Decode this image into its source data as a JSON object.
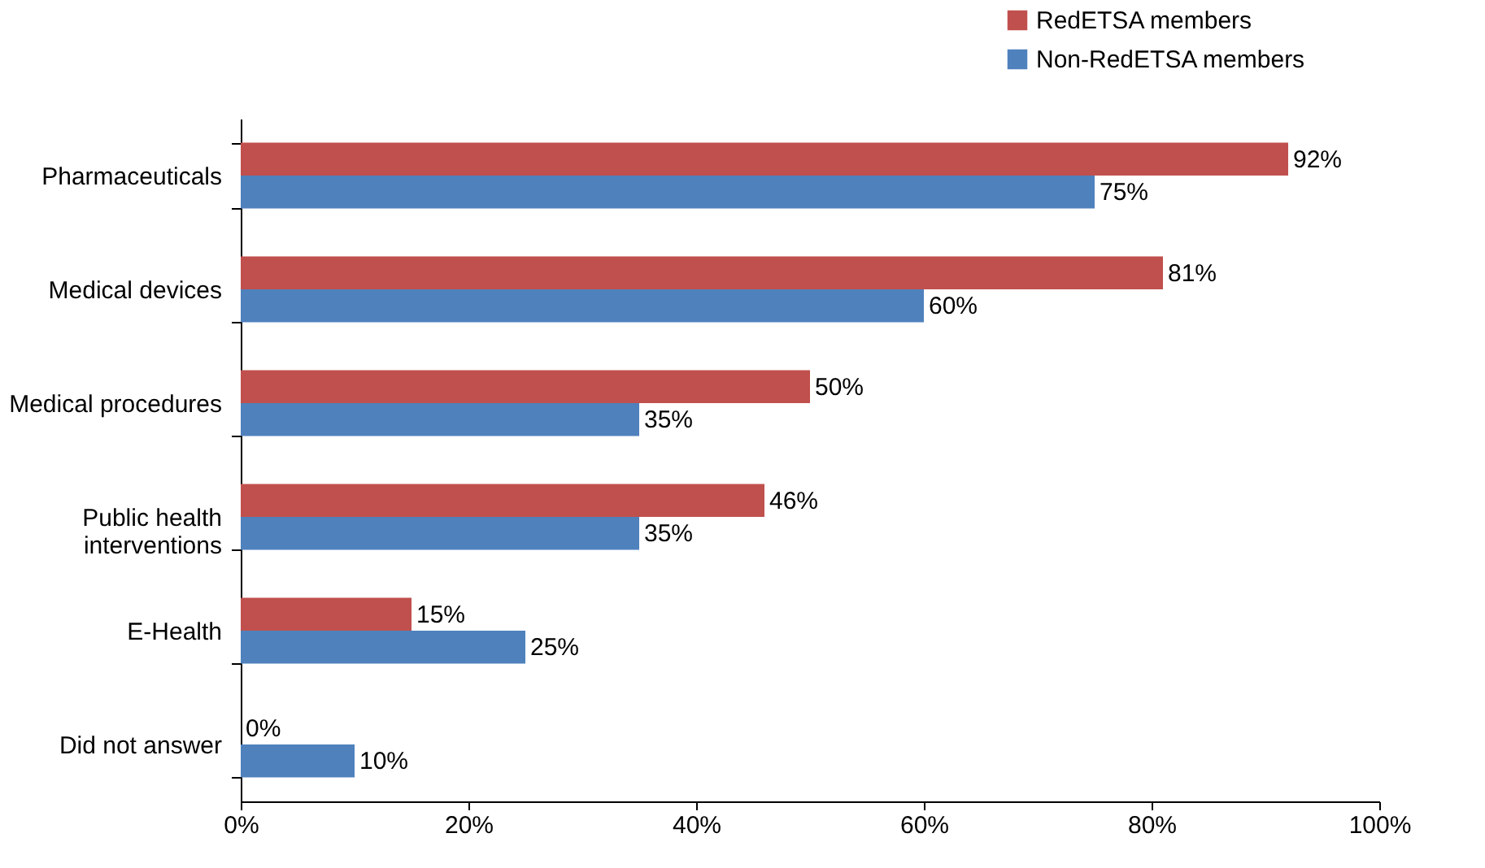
{
  "chart_data": {
    "type": "bar",
    "orientation": "horizontal",
    "categories": [
      "Pharmaceuticals",
      "Medical devices",
      "Medical procedures",
      "Public health interventions",
      "E-Health",
      "Did not answer"
    ],
    "series": [
      {
        "name": "RedETSA members",
        "color": "#c0504d",
        "values": [
          92,
          81,
          50,
          46,
          15,
          0
        ],
        "value_labels": [
          "92%",
          "81%",
          "50%",
          "46%",
          "15%",
          "0%"
        ]
      },
      {
        "name": "Non-RedETSA members",
        "color": "#4f81bd",
        "values": [
          75,
          60,
          35,
          35,
          25,
          10
        ],
        "value_labels": [
          "75%",
          "60%",
          "35%",
          "35%",
          "25%",
          "10%"
        ]
      }
    ],
    "xlim": [
      0,
      100
    ],
    "xticks": [
      {
        "value": 0,
        "label": "0%"
      },
      {
        "value": 20,
        "label": "20%"
      },
      {
        "value": 40,
        "label": "40%"
      },
      {
        "value": 60,
        "label": "60%"
      },
      {
        "value": 80,
        "label": "80%"
      },
      {
        "value": 100,
        "label": "100%"
      }
    ],
    "grid": false,
    "legend": "top right"
  }
}
